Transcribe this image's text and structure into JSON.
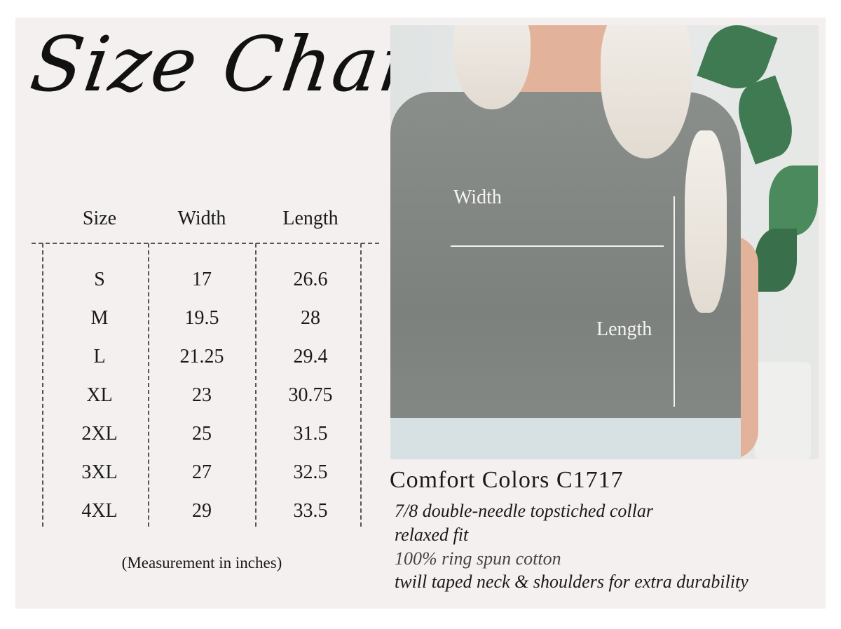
{
  "title": "Size Chart",
  "table": {
    "headers": [
      "Size",
      "Width",
      "Length"
    ],
    "rows": [
      [
        "S",
        "17",
        "26.6"
      ],
      [
        "M",
        "19.5",
        "28"
      ],
      [
        "L",
        "21.25",
        "29.4"
      ],
      [
        "XL",
        "23",
        "30.75"
      ],
      [
        "2XL",
        "25",
        "31.5"
      ],
      [
        "3XL",
        "27",
        "32.5"
      ],
      [
        "4XL",
        "29",
        "33.5"
      ]
    ],
    "note": "(Measurement in inches)"
  },
  "photo": {
    "width_label": "Width",
    "length_label": "Length",
    "shirt_color": "#858986"
  },
  "product": {
    "name": "Comfort Colors C1717",
    "features": [
      "7/8 double-needle topstiched collar",
      "relaxed fit",
      "100% ring spun cotton",
      "twill taped neck & shoulders for extra durability"
    ]
  }
}
